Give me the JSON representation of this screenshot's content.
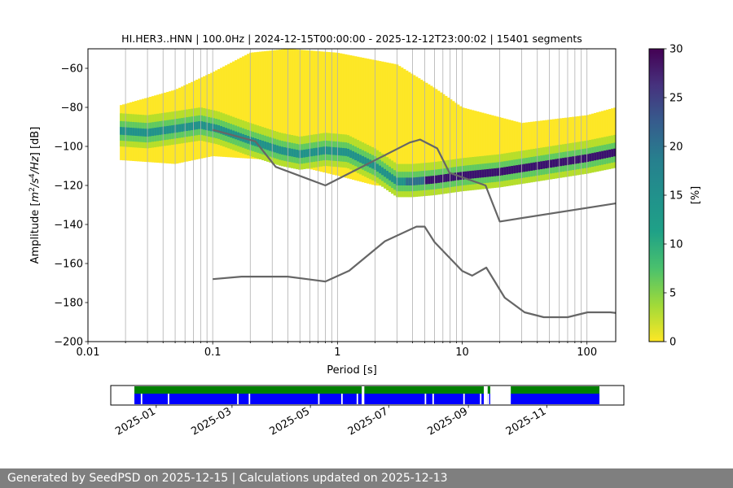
{
  "chart_data": [
    {
      "type": "heatmap",
      "title": "HI.HER3..HNN | 100.0Hz | 2024-12-15T00:00:00 - 2025-12-12T23:00:02 | 15401 segments",
      "xlabel": "Period [s]",
      "ylabel_parts": [
        "Amplitude [",
        "m",
        "2",
        "/s",
        "4",
        "/Hz",
        "] [dB]"
      ],
      "x_scale": "log",
      "xlim": [
        0.01,
        170
      ],
      "ylim": [
        -200,
        -50
      ],
      "x_ticks": [
        {
          "v": 0.01,
          "label": "0.01"
        },
        {
          "v": 0.1,
          "label": "0.1"
        },
        {
          "v": 1,
          "label": "1"
        },
        {
          "v": 10,
          "label": "10"
        },
        {
          "v": 100,
          "label": "100"
        }
      ],
      "y_ticks": [
        -200,
        -180,
        -160,
        -140,
        -120,
        -100,
        -80,
        -60
      ],
      "grid": true,
      "colorbar": {
        "label": "[%]",
        "range": [
          0,
          30
        ],
        "ticks": [
          0,
          5,
          10,
          15,
          20,
          25,
          30
        ],
        "colormap": "viridis_r"
      },
      "psd_mode": [
        [
          0.018,
          -92
        ],
        [
          0.03,
          -93
        ],
        [
          0.05,
          -91
        ],
        [
          0.08,
          -89
        ],
        [
          0.11,
          -91
        ],
        [
          0.2,
          -97
        ],
        [
          0.35,
          -102
        ],
        [
          0.5,
          -104
        ],
        [
          0.8,
          -102
        ],
        [
          1.2,
          -103
        ],
        [
          2,
          -110
        ],
        [
          3,
          -118
        ],
        [
          4,
          -118
        ],
        [
          6,
          -117
        ],
        [
          10,
          -115
        ],
        [
          20,
          -113
        ],
        [
          50,
          -109
        ],
        [
          100,
          -106
        ],
        [
          170,
          -103
        ]
      ],
      "psd_upper": [
        [
          0.018,
          -79
        ],
        [
          0.05,
          -71
        ],
        [
          0.1,
          -62
        ],
        [
          0.2,
          -52
        ],
        [
          0.4,
          -50
        ],
        [
          1,
          -52
        ],
        [
          3,
          -58
        ],
        [
          6,
          -70
        ],
        [
          10,
          -80
        ],
        [
          30,
          -88
        ],
        [
          100,
          -84
        ],
        [
          170,
          -80
        ]
      ],
      "psd_lower": [
        [
          0.018,
          -107
        ],
        [
          0.05,
          -109
        ],
        [
          0.1,
          -105
        ],
        [
          0.3,
          -107
        ],
        [
          1,
          -115
        ],
        [
          2,
          -120
        ],
        [
          4,
          -121
        ],
        [
          10,
          -119
        ],
        [
          40,
          -116
        ],
        [
          100,
          -112
        ],
        [
          170,
          -109
        ]
      ],
      "nhnm": [
        [
          0.1,
          -91.5
        ],
        [
          0.22,
          -97.4
        ],
        [
          0.32,
          -110.5
        ],
        [
          0.8,
          -120
        ],
        [
          3.8,
          -98
        ],
        [
          4.6,
          -96.5
        ],
        [
          6.3,
          -101
        ],
        [
          7.9,
          -113.5
        ],
        [
          15.4,
          -120
        ],
        [
          20,
          -138.5
        ],
        [
          354.8,
          -126
        ]
      ],
      "nlnm": [
        [
          0.1,
          -168
        ],
        [
          0.17,
          -166.7
        ],
        [
          0.4,
          -166.7
        ],
        [
          0.8,
          -169.2
        ],
        [
          1.24,
          -163.7
        ],
        [
          2.4,
          -148.6
        ],
        [
          4.3,
          -141.1
        ],
        [
          5,
          -141.1
        ],
        [
          6,
          -149
        ],
        [
          10,
          -163.8
        ],
        [
          12,
          -166.2
        ],
        [
          15.6,
          -162.1
        ],
        [
          21.9,
          -177.5
        ],
        [
          31.6,
          -185
        ],
        [
          45,
          -187.5
        ],
        [
          70,
          -187.5
        ],
        [
          101,
          -185
        ],
        [
          154,
          -185
        ],
        [
          328,
          -187.5
        ]
      ]
    },
    {
      "type": "timeline",
      "x_ticks": [
        "2025-01",
        "2025-03",
        "2025-05",
        "2025-07",
        "2025-09",
        "2025-11"
      ],
      "colors": {
        "data": "#0000ff",
        "processed": "#008000"
      },
      "gaps": [
        "2024-12-20",
        "2025-01-10",
        "2025-03-05",
        "2025-03-14",
        "2025-05-07",
        "2025-05-25",
        "2025-06-06",
        "2025-06-10",
        "2025-07-29",
        "2025-08-04",
        "2025-08-28",
        "2025-09-10",
        "2025-09-16"
      ],
      "large_gaps": [
        [
          "2025-06-10",
          "2025-06-12"
        ],
        [
          "2025-09-13",
          "2025-09-16"
        ],
        [
          "2025-09-18",
          "2025-10-04"
        ]
      ],
      "data_range": [
        "2024-12-15",
        "2025-12-12"
      ]
    }
  ],
  "footer": "Generated by SeedPSD on 2025-12-15 | Calculations updated on 2025-12-13"
}
